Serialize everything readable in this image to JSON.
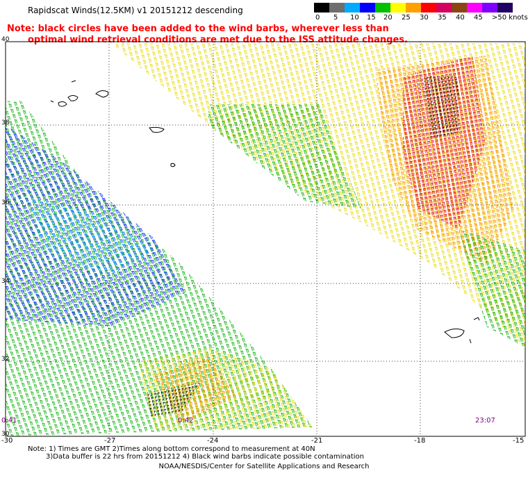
{
  "header": {
    "title": "Rapidscat Winds(12.5KM) v1 20151212 descending",
    "note_line1": "Note: black circles have been added to the wind barbs, wherever less than",
    "note_line2": "optimal wind retrieval conditions are met due to the ISS attitude changes."
  },
  "legend": {
    "labels": [
      "0",
      "5",
      "10",
      "15",
      "20",
      "25",
      "30",
      "35",
      "40",
      "45",
      ">50 knots"
    ],
    "colors": [
      "#000000",
      "#6e6e6e",
      "#00aaff",
      "#0000ff",
      "#00c000",
      "#ffff00",
      "#ffa000",
      "#ff0000",
      "#d40060",
      "#8b4513",
      "#ff00ff",
      "#8000ff",
      "#200060"
    ]
  },
  "axes": {
    "lat_labels": [
      "40",
      "38",
      "36",
      "34",
      "32",
      "30"
    ],
    "lon_labels": [
      "-30",
      "-27",
      "-24",
      "-21",
      "-18",
      "-15"
    ]
  },
  "times": [
    "0:41",
    "0:42",
    "23:07"
  ],
  "footer": {
    "line1": "Note: 1) Times are GMT 2)Times along bottom correspond to measurement at 40N",
    "line2": "3)Data buffer is 22 hrs from 20151212 4) Black wind barbs indicate possible contamination",
    "line3": "NOAA/NESDIS/Center for Satellite Applications and Research"
  }
}
